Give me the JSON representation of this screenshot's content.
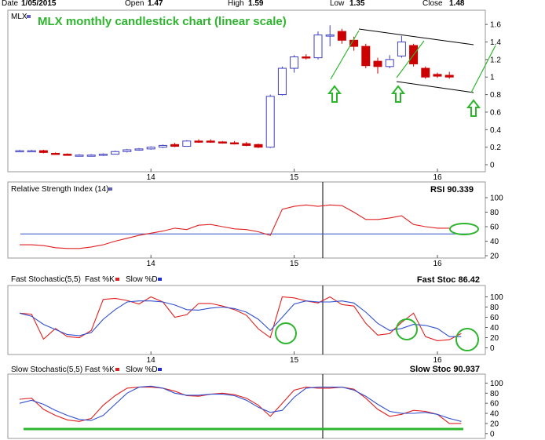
{
  "header": {
    "date_label": "Date",
    "date_value": "1/05/2015",
    "open_label": "Open",
    "open_value": "1.47",
    "high_label": "High",
    "high_value": "1.59",
    "low_label": "Low",
    "low_value": "1.35",
    "close_label": "Close",
    "close_value": "1.48"
  },
  "colors": {
    "up_candle": "#4040c0",
    "down_candle": "#cc0000",
    "annotation": "#2db52d",
    "rsi_line": "#e02020",
    "signal_line": "#3050d0",
    "grid": "#cccccc"
  },
  "chart_data": [
    {
      "type": "candlestick",
      "title": "MLX monthly candlestick chart (linear scale)",
      "legend": "MLX",
      "ylim": [
        0,
        1.7
      ],
      "yticks": [
        0,
        0.2,
        0.4,
        0.6,
        0.8,
        1,
        1.2,
        1.4,
        1.6
      ],
      "xtick_labels": [
        {
          "label": "14",
          "index": 11
        },
        {
          "label": "15",
          "index": 23
        },
        {
          "label": "16",
          "index": 35
        }
      ],
      "candles": [
        {
          "o": 0.16,
          "h": 0.17,
          "l": 0.15,
          "c": 0.16
        },
        {
          "o": 0.16,
          "h": 0.17,
          "l": 0.15,
          "c": 0.16
        },
        {
          "o": 0.16,
          "h": 0.17,
          "l": 0.13,
          "c": 0.14
        },
        {
          "o": 0.13,
          "h": 0.14,
          "l": 0.12,
          "c": 0.12
        },
        {
          "o": 0.12,
          "h": 0.13,
          "l": 0.11,
          "c": 0.11
        },
        {
          "o": 0.11,
          "h": 0.12,
          "l": 0.1,
          "c": 0.11
        },
        {
          "o": 0.1,
          "h": 0.12,
          "l": 0.1,
          "c": 0.11
        },
        {
          "o": 0.11,
          "h": 0.13,
          "l": 0.1,
          "c": 0.12
        },
        {
          "o": 0.12,
          "h": 0.16,
          "l": 0.12,
          "c": 0.15
        },
        {
          "o": 0.15,
          "h": 0.18,
          "l": 0.14,
          "c": 0.17
        },
        {
          "o": 0.17,
          "h": 0.19,
          "l": 0.16,
          "c": 0.18
        },
        {
          "o": 0.18,
          "h": 0.21,
          "l": 0.17,
          "c": 0.2
        },
        {
          "o": 0.2,
          "h": 0.23,
          "l": 0.19,
          "c": 0.22
        },
        {
          "o": 0.23,
          "h": 0.25,
          "l": 0.2,
          "c": 0.21
        },
        {
          "o": 0.21,
          "h": 0.28,
          "l": 0.21,
          "c": 0.27
        },
        {
          "o": 0.27,
          "h": 0.29,
          "l": 0.25,
          "c": 0.26
        },
        {
          "o": 0.27,
          "h": 0.29,
          "l": 0.25,
          "c": 0.26
        },
        {
          "o": 0.26,
          "h": 0.27,
          "l": 0.24,
          "c": 0.25
        },
        {
          "o": 0.25,
          "h": 0.27,
          "l": 0.23,
          "c": 0.24
        },
        {
          "o": 0.24,
          "h": 0.26,
          "l": 0.21,
          "c": 0.22
        },
        {
          "o": 0.23,
          "h": 0.24,
          "l": 0.19,
          "c": 0.2
        },
        {
          "o": 0.2,
          "h": 0.8,
          "l": 0.19,
          "c": 0.78
        },
        {
          "o": 0.8,
          "h": 1.12,
          "l": 0.79,
          "c": 1.1
        },
        {
          "o": 1.1,
          "h": 1.25,
          "l": 1.05,
          "c": 1.23
        },
        {
          "o": 1.23,
          "h": 1.26,
          "l": 1.2,
          "c": 1.22
        },
        {
          "o": 1.22,
          "h": 1.52,
          "l": 1.2,
          "c": 1.48
        },
        {
          "o": 1.47,
          "h": 1.59,
          "l": 1.35,
          "c": 1.48
        },
        {
          "o": 1.52,
          "h": 1.55,
          "l": 1.38,
          "c": 1.42
        },
        {
          "o": 1.42,
          "h": 1.46,
          "l": 1.3,
          "c": 1.35
        },
        {
          "o": 1.35,
          "h": 1.38,
          "l": 1.1,
          "c": 1.13
        },
        {
          "o": 1.18,
          "h": 1.22,
          "l": 1.04,
          "c": 1.12
        },
        {
          "o": 1.12,
          "h": 1.25,
          "l": 1.1,
          "c": 1.2
        },
        {
          "o": 1.24,
          "h": 1.47,
          "l": 1.22,
          "c": 1.4
        },
        {
          "o": 1.36,
          "h": 1.38,
          "l": 1.12,
          "c": 1.15
        },
        {
          "o": 1.1,
          "h": 1.12,
          "l": 0.98,
          "c": 1.0
        },
        {
          "o": 1.03,
          "h": 1.05,
          "l": 0.99,
          "c": 1.01
        },
        {
          "o": 1.02,
          "h": 1.06,
          "l": 0.98,
          "c": 1.0
        }
      ],
      "annotations": [
        "arrow-up",
        "arrow-up",
        "arrow-up"
      ]
    },
    {
      "type": "line",
      "title": "Relative Strength Index (14)",
      "value_label": "RSI 90.339",
      "ylim": [
        20,
        100
      ],
      "yticks": [
        20,
        40,
        60,
        80,
        100
      ],
      "reference_line": 50,
      "series": [
        {
          "values": [
            35,
            35,
            34,
            31,
            30,
            30,
            32,
            35,
            40,
            44,
            48,
            51,
            54,
            58,
            56,
            62,
            63,
            60,
            57,
            56,
            53,
            48,
            84,
            88,
            90,
            88,
            90,
            89,
            80,
            70,
            70,
            72,
            75,
            63,
            60,
            58,
            58
          ]
        }
      ]
    },
    {
      "type": "line",
      "title": "Fast Stochastic(5,5)",
      "legend": [
        "Fast %K",
        "Slow %D"
      ],
      "value_label": "Fast Stoc 86.42",
      "ylim": [
        -10,
        110
      ],
      "yticks": [
        0,
        20,
        40,
        60,
        80,
        100
      ],
      "series": [
        {
          "name": "Fast %K",
          "values": [
            68,
            66,
            17,
            38,
            22,
            20,
            34,
            95,
            97,
            93,
            86,
            100,
            90,
            60,
            65,
            87,
            87,
            82,
            75,
            64,
            37,
            20,
            100,
            98,
            92,
            88,
            100,
            85,
            82,
            48,
            25,
            28,
            50,
            68,
            22,
            14,
            16,
            28
          ]
        },
        {
          "name": "Slow %D",
          "values": [
            68,
            62,
            46,
            36,
            26,
            24,
            30,
            56,
            75,
            90,
            92,
            92,
            90,
            84,
            75,
            74,
            78,
            80,
            77,
            70,
            56,
            34,
            60,
            86,
            92,
            90,
            90,
            92,
            88,
            70,
            48,
            34,
            38,
            46,
            44,
            38,
            22,
            22
          ]
        }
      ]
    },
    {
      "type": "line",
      "title": "Slow Stochastic(5,5)",
      "legend": [
        "Fast %K",
        "Slow %D"
      ],
      "value_label": "Slow Stoc 90.937",
      "ylim": [
        -5,
        110
      ],
      "yticks": [
        0,
        20,
        40,
        60,
        80,
        100
      ],
      "series": [
        {
          "name": "Fast %K",
          "values": [
            68,
            70,
            48,
            36,
            27,
            24,
            30,
            56,
            75,
            90,
            92,
            92,
            90,
            84,
            75,
            74,
            78,
            80,
            77,
            70,
            56,
            34,
            60,
            86,
            92,
            90,
            90,
            92,
            88,
            70,
            48,
            34,
            38,
            46,
            44,
            38,
            20,
            20
          ]
        },
        {
          "name": "Slow %D",
          "values": [
            60,
            66,
            58,
            46,
            36,
            28,
            26,
            36,
            58,
            80,
            92,
            94,
            90,
            80,
            76,
            76,
            78,
            78,
            75,
            66,
            52,
            42,
            46,
            72,
            90,
            92,
            92,
            92,
            86,
            74,
            58,
            44,
            40,
            40,
            42,
            38,
            30,
            24
          ]
        }
      ]
    }
  ]
}
